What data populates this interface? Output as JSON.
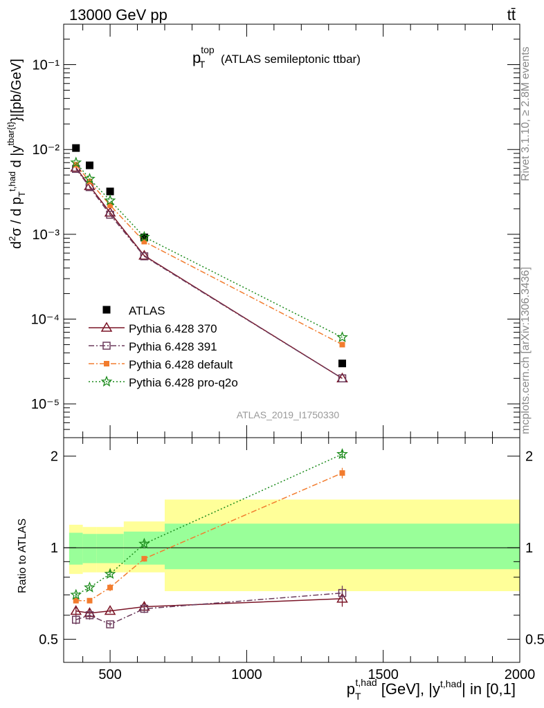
{
  "header": {
    "left": "13000 GeV pp",
    "right": "tt̄"
  },
  "side": {
    "rivet": "Rivet 3.1.10, ≥ 2.8M events",
    "mcplots": "mcplots.cern.ch [arXiv:1306.3436]"
  },
  "plot_title": {
    "main": "p",
    "sup": "top",
    "sub": "T",
    "rest": " (ATLAS semileptonic ttbar)"
  },
  "analysis_id": "ATLAS_2019_I1750330",
  "colors": {
    "atlas": "#000000",
    "p370": "#7a1426",
    "p391": "#6b3a5b",
    "default": "#f27c2e",
    "proq2o": "#1a8a1a",
    "band_inner": "#99ff99",
    "band_outer": "#ffff99"
  },
  "chart_data": [
    {
      "type": "scatter",
      "panel": "main",
      "yscale": "log",
      "ylim": [
        4e-06,
        0.3
      ],
      "xlim": [
        330,
        2000
      ],
      "ylabel": "d²σ / d p_T^{t,had} d |y^{tbar{t}}|[pb/GeV]",
      "yticks": [
        "10⁻⁵",
        "10⁻⁴",
        "10⁻³",
        "10⁻²",
        "10⁻¹"
      ],
      "legend_position": "lower-left",
      "series": [
        {
          "name": "ATLAS",
          "marker": "filled-square",
          "x": [
            375,
            425,
            500,
            625,
            1350
          ],
          "y": [
            0.0104,
            0.0065,
            0.0032,
            0.00092,
            3e-05
          ]
        },
        {
          "name": "Pythia 6.428 370",
          "marker": "open-triangle",
          "line": "solid",
          "x": [
            375,
            425,
            500,
            625,
            1350
          ],
          "y": [
            0.0061,
            0.0037,
            0.0018,
            0.00056,
            2e-05
          ]
        },
        {
          "name": "Pythia 6.428 391",
          "marker": "open-square",
          "line": "dashdot",
          "x": [
            375,
            425,
            500,
            625,
            1350
          ],
          "y": [
            0.0059,
            0.0036,
            0.0017,
            0.00055,
            2e-05
          ]
        },
        {
          "name": "Pythia 6.428 default",
          "marker": "filled-square-small",
          "line": "dashdot",
          "x": [
            375,
            425,
            500,
            625,
            1350
          ],
          "y": [
            0.0066,
            0.0042,
            0.0022,
            0.00082,
            5e-05
          ]
        },
        {
          "name": "Pythia 6.428 pro-q2o",
          "marker": "star",
          "line": "dotted",
          "x": [
            375,
            425,
            500,
            625,
            1350
          ],
          "y": [
            0.007,
            0.0045,
            0.0025,
            0.00093,
            6.1e-05
          ]
        }
      ]
    },
    {
      "type": "line",
      "panel": "ratio",
      "ylabel": "Ratio to ATLAS",
      "xlabel": "p_T^{t,had} [GeV], |y^{t,had}| in [0,1]",
      "xlim": [
        330,
        2000
      ],
      "ylim": [
        0.42,
        2.3
      ],
      "xticks": [
        "500",
        "1000",
        "1500",
        "2000"
      ],
      "yticks": [
        "0.5",
        "1",
        "2"
      ],
      "bands": [
        {
          "x0": 350,
          "x1": 400,
          "inner": [
            0.88,
            1.12
          ],
          "outer": [
            0.82,
            1.19
          ]
        },
        {
          "x0": 400,
          "x1": 450,
          "inner": [
            0.89,
            1.11
          ],
          "outer": [
            0.83,
            1.17
          ]
        },
        {
          "x0": 450,
          "x1": 550,
          "inner": [
            0.89,
            1.11
          ],
          "outer": [
            0.83,
            1.17
          ]
        },
        {
          "x0": 550,
          "x1": 700,
          "inner": [
            0.88,
            1.13
          ],
          "outer": [
            0.83,
            1.22
          ]
        },
        {
          "x0": 700,
          "x1": 2000,
          "inner": [
            0.85,
            1.2
          ],
          "outer": [
            0.72,
            1.44
          ]
        }
      ],
      "series": [
        {
          "name": "Pythia 6.428 370",
          "x": [
            375,
            425,
            500,
            625,
            1350
          ],
          "y": [
            0.62,
            0.61,
            0.62,
            0.64,
            0.68
          ],
          "err": [
            0.02,
            0.02,
            0.01,
            0.02,
            0.04
          ]
        },
        {
          "name": "Pythia 6.428 391",
          "x": [
            375,
            425,
            500,
            625,
            1350
          ],
          "y": [
            0.58,
            0.6,
            0.56,
            0.63,
            0.71
          ],
          "err": [
            0.02,
            0.02,
            0.01,
            0.02,
            0.04
          ]
        },
        {
          "name": "Pythia 6.428 default",
          "x": [
            375,
            425,
            500,
            625,
            1350
          ],
          "y": [
            0.67,
            0.67,
            0.74,
            0.92,
            1.76
          ],
          "err": [
            0.01,
            0.01,
            0.02,
            0.02,
            0.07
          ]
        },
        {
          "name": "Pythia 6.428 pro-q2o",
          "x": [
            375,
            425,
            500,
            625,
            1350
          ],
          "y": [
            0.7,
            0.74,
            0.82,
            1.03,
            2.03
          ],
          "err": [
            0.01,
            0.01,
            0.02,
            0.02,
            0.07
          ]
        }
      ]
    }
  ]
}
